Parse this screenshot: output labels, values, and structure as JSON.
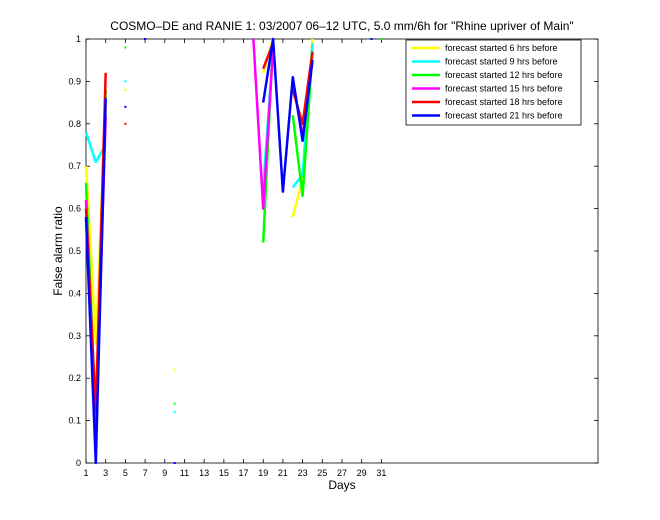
{
  "chart_data": {
    "type": "line",
    "title": "COSMO–DE and RANIE 1: 03/2007 06–12 UTC, 5.0 mm/6h for \"Rhine upriver of Main\"",
    "xlabel": "Days",
    "ylabel": "False alarm ratio",
    "xlim": [
      1,
      53
    ],
    "ylim": [
      0,
      1
    ],
    "xticks": [
      1,
      3,
      5,
      7,
      9,
      11,
      13,
      15,
      17,
      19,
      21,
      23,
      25,
      27,
      29,
      31
    ],
    "yticks": [
      0,
      0.1,
      0.2,
      0.3,
      0.4,
      0.5,
      0.6,
      0.7,
      0.8,
      0.9,
      1
    ],
    "legend_position": "top-right",
    "grid": false,
    "series": [
      {
        "name": "forecast started 6 hrs before",
        "color": "#ffff00",
        "segments": [
          [
            [
              1,
              0.7
            ],
            [
              1.5,
              0.5
            ],
            [
              2,
              0.28
            ],
            [
              3,
              0.84
            ]
          ],
          [
            [
              19,
              0.92
            ],
            [
              20,
              1.0
            ]
          ],
          [
            [
              22,
              0.58
            ],
            [
              23,
              0.67
            ],
            [
              24,
              1.0
            ]
          ]
        ],
        "points": [
          [
            5,
            0.88
          ],
          [
            10,
            0.22
          ]
        ]
      },
      {
        "name": "forecast started 9 hrs before",
        "color": "#00ffff",
        "segments": [
          [
            [
              1,
              0.78
            ],
            [
              2,
              0.71
            ],
            [
              3,
              0.75
            ]
          ],
          [
            [
              19,
              0.65
            ],
            [
              20,
              0.98
            ]
          ],
          [
            [
              22,
              0.65
            ],
            [
              23,
              0.68
            ],
            [
              24,
              0.99
            ]
          ]
        ],
        "points": [
          [
            5,
            0.9
          ],
          [
            10,
            0.12
          ]
        ]
      },
      {
        "name": "forecast started 12 hrs before",
        "color": "#00ff00",
        "segments": [
          [
            [
              1,
              0.66
            ],
            [
              2,
              0.1
            ],
            [
              3,
              0.88
            ]
          ],
          [
            [
              19,
              0.52
            ],
            [
              20,
              1.0
            ]
          ],
          [
            [
              22,
              0.82
            ],
            [
              23,
              0.63
            ],
            [
              24,
              0.97
            ]
          ]
        ],
        "points": [
          [
            5,
            0.98
          ],
          [
            10,
            0.14
          ],
          [
            31,
            1.0
          ]
        ]
      },
      {
        "name": "forecast started 15 hrs before",
        "color": "#ff00ff",
        "segments": [
          [
            [
              1,
              0.62
            ],
            [
              2,
              0.06
            ],
            [
              3,
              0.82
            ]
          ],
          [
            [
              18,
              1.0
            ],
            [
              19,
              0.6
            ],
            [
              20,
              0.98
            ]
          ],
          [
            [
              22,
              0.9
            ],
            [
              23,
              0.77
            ],
            [
              24,
              0.95
            ]
          ]
        ],
        "points": []
      },
      {
        "name": "forecast started 18 hrs before",
        "color": "#ff0000",
        "segments": [
          [
            [
              1,
              0.6
            ],
            [
              2,
              0.12
            ],
            [
              3,
              0.92
            ]
          ],
          [
            [
              19,
              0.93
            ],
            [
              20,
              0.99
            ]
          ],
          [
            [
              22,
              0.88
            ],
            [
              23,
              0.8
            ],
            [
              24,
              0.97
            ]
          ]
        ],
        "points": [
          [
            5,
            0.8
          ]
        ]
      },
      {
        "name": "forecast started 21 hrs before",
        "color": "#0000ff",
        "segments": [
          [
            [
              1,
              0.58
            ],
            [
              2,
              0.0
            ],
            [
              3,
              0.86
            ]
          ],
          [
            [
              19,
              0.85
            ],
            [
              20,
              1.0
            ],
            [
              21,
              0.64
            ],
            [
              22,
              0.91
            ],
            [
              23,
              0.76
            ],
            [
              24,
              0.95
            ]
          ]
        ],
        "points": [
          [
            5,
            0.84
          ],
          [
            10,
            0.0
          ],
          [
            7,
            1.0
          ],
          [
            30,
            1.0
          ]
        ]
      }
    ]
  }
}
